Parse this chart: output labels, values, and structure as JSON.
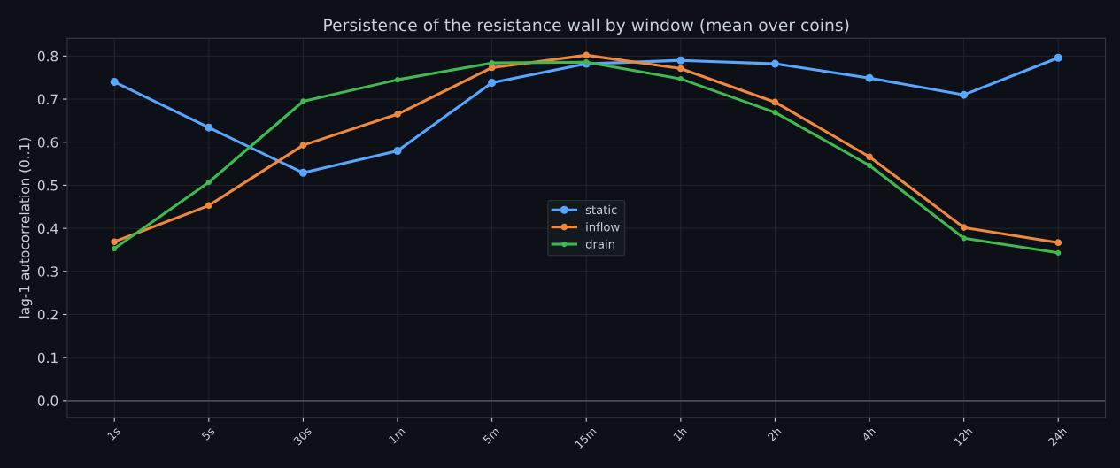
{
  "chart_data": {
    "type": "line",
    "title": "Persistence of the resistance wall by window (mean over coins)",
    "ylabel": "lag-1 autocorrelation (0..1)",
    "categories": [
      "1s",
      "5s",
      "30s",
      "1m",
      "5m",
      "15m",
      "1h",
      "2h",
      "4h",
      "12h",
      "24h"
    ],
    "series": [
      {
        "name": "static",
        "color": "#58a6ff",
        "values": [
          0.74,
          0.634,
          0.529,
          0.58,
          0.738,
          0.782,
          0.79,
          0.782,
          0.749,
          0.71,
          0.796
        ]
      },
      {
        "name": "inflow",
        "color": "#f0883e",
        "values": [
          0.369,
          0.453,
          0.593,
          0.665,
          0.773,
          0.802,
          0.771,
          0.693,
          0.566,
          0.402,
          0.367
        ]
      },
      {
        "name": "drain",
        "color": "#3fb950",
        "values": [
          0.353,
          0.507,
          0.695,
          0.745,
          0.784,
          0.786,
          0.747,
          0.669,
          0.546,
          0.377,
          0.343
        ]
      }
    ],
    "ylim": [
      -0.039,
      0.841
    ],
    "yticks": [
      {
        "value": 0,
        "label": "0.0"
      },
      0.1,
      0.2,
      0.3,
      0.4,
      0.5,
      0.6,
      0.7,
      0.8
    ],
    "ref_lines": [
      {
        "axis": "y",
        "value": 0,
        "label": null,
        "color": "#444c56"
      }
    ],
    "grid": true,
    "legend": "center",
    "marker": "circle",
    "line_style": "solid"
  }
}
